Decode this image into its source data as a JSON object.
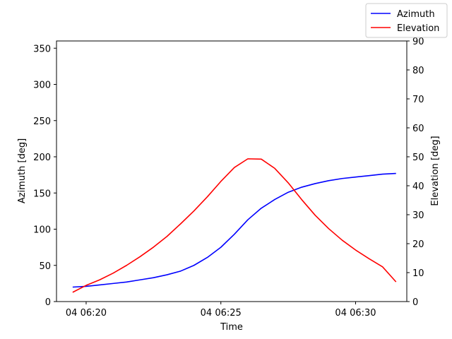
{
  "chart_data": {
    "type": "line",
    "xlabel": "Time",
    "ylabel_left": "Azimuth [deg]",
    "ylabel_right": "Elevation [deg]",
    "x_ticks": [
      "04 06:20",
      "04 06:25",
      "04 06:30"
    ],
    "x_tick_minutes": [
      20,
      25,
      30
    ],
    "xlim_minutes": [
      18.9,
      31.9
    ],
    "ylim_left": [
      0,
      360
    ],
    "yticks_left": [
      0,
      50,
      100,
      150,
      200,
      250,
      300,
      350
    ],
    "ylim_right": [
      0,
      90
    ],
    "yticks_right": [
      0,
      10,
      20,
      30,
      40,
      50,
      60,
      70,
      80,
      90
    ],
    "grid": false,
    "legend_placement": "top-right (outside axes)",
    "x_minutes": [
      19.5,
      20.0,
      20.5,
      21.0,
      21.5,
      22.0,
      22.5,
      23.0,
      23.5,
      24.0,
      24.5,
      25.0,
      25.5,
      26.0,
      26.5,
      27.0,
      27.5,
      28.0,
      28.5,
      29.0,
      29.5,
      30.0,
      30.5,
      31.0,
      31.5
    ],
    "series": [
      {
        "name": "Azimuth",
        "color": "#0000ff",
        "axis": "left",
        "values": [
          20,
          21,
          23,
          25,
          27,
          30,
          33,
          37,
          42,
          50,
          61,
          75,
          93,
          113,
          129,
          141,
          151,
          158,
          163,
          167,
          170,
          172,
          174,
          176,
          177
        ]
      },
      {
        "name": "Elevation",
        "color": "#ff0000",
        "axis": "right",
        "values": [
          3.2,
          5.6,
          7.5,
          9.8,
          12.5,
          15.5,
          18.8,
          22.5,
          26.8,
          31.3,
          36.2,
          41.5,
          46.3,
          49.3,
          49.2,
          46.0,
          41.0,
          35.2,
          29.8,
          25.2,
          21.2,
          17.8,
          14.8,
          12.0,
          6.8
        ]
      }
    ]
  }
}
